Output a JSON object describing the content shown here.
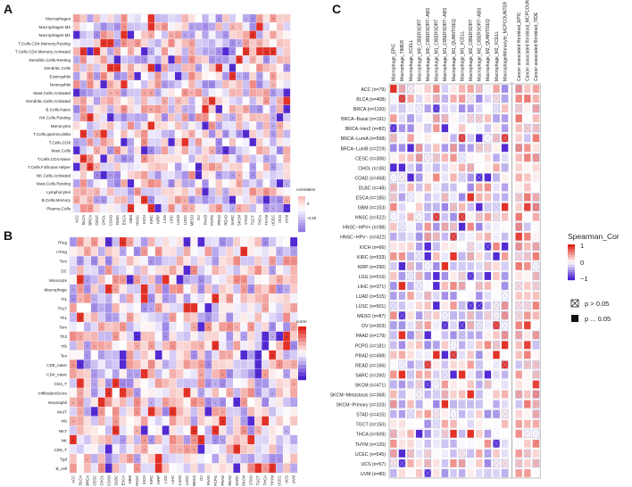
{
  "panel_letters": {
    "a": "A",
    "b": "B",
    "c": "C"
  },
  "scale": {
    "neg": "#4a1fd1",
    "mid": "#ffffff",
    "pos": "#e0261c"
  },
  "chart_data": [
    {
      "id": "A",
      "type": "heatmap",
      "title": "",
      "legend_title": "correlation",
      "legend_ticks": [
        "0",
        "-0.25"
      ],
      "legend_placement": "right",
      "rows": [
        "Macrophages",
        "Macrophages.M2",
        "Macrophages.M1",
        "T.Cells.CD4.Memory.Resting",
        "T.Cells.CD4.Memory.Activated",
        "Dendritic.Cells.Resting",
        "Dendritic.Cells",
        "Eosinophils",
        "Neutrophils",
        "Mast.Cells.Activated",
        "Dendritic.Cells.Activated",
        "B.Cells.Naive",
        "NK.Cells.Resting",
        "Monocytes",
        "T.Cells.gamma.delta",
        "T.Cells.CD8",
        "Mast.Cells",
        "T.Cells.CD4.Naive",
        "T.Cells.Follicular.Helper",
        "NK.Cells.Activated",
        "Mast.Cells.Resting",
        "Lymphocytes",
        "B.Cells.Memory",
        "Plasma.Cells"
      ],
      "columns": [
        "ACC",
        "BLCA",
        "BRCA",
        "CESC",
        "CHOL",
        "COAD",
        "DLBC",
        "ESCA",
        "GBM",
        "HNSC",
        "KICH",
        "KIRC",
        "KIRP",
        "LGG",
        "LIHC",
        "LUAD",
        "LUSC",
        "MESO",
        "OV",
        "PAAD",
        "PCPG",
        "PRAD",
        "READ",
        "SARC",
        "SKCM",
        "STAD",
        "TGCT",
        "THCA",
        "THYM",
        "UCEC",
        "UCS",
        "UVM"
      ]
    },
    {
      "id": "B",
      "type": "heatmap",
      "title": "",
      "legend_title": "correl",
      "legend_placement": "right",
      "rows": [
        "iTreg",
        "nTreg",
        "Tcm",
        "DC",
        "Monocyte",
        "Macrophage",
        "Tr1",
        "Th17",
        "Th1",
        "Tem",
        "Th2",
        "Tfh",
        "Tex",
        "CD8_naive",
        "CD4_naive",
        "CD4_T",
        "InfiltrationScore",
        "Neutrophil",
        "MAIT",
        "Tfh",
        "NKT",
        "NK",
        "CD8_T",
        "Tgd",
        "B_cell"
      ],
      "columns": [
        "ACC",
        "BLCA",
        "BRCA",
        "CESC",
        "CHOL",
        "COAD",
        "DLBC",
        "ESCA",
        "GBM",
        "HNSC",
        "KICH",
        "KIRC",
        "KIRP",
        "LGG",
        "LIHC",
        "LUAD",
        "LUSC",
        "MESO",
        "OV",
        "PAAD",
        "PCPG",
        "PRAD",
        "READ",
        "SARC",
        "SKCM",
        "STAD",
        "TGCT",
        "THCA",
        "THYM",
        "UCEC",
        "UCS",
        "UVM"
      ]
    },
    {
      "id": "C",
      "type": "heatmap",
      "title": "",
      "legend_title": "Spearman_Cor",
      "legend_ticks": [
        "1",
        "0",
        "−1"
      ],
      "legend_placement": "right",
      "significance_legend": [
        {
          "symbol": "crossed-box",
          "label": "p > 0.05"
        },
        {
          "symbol": "filled-box",
          "label": "p ... 0.05"
        }
      ],
      "columns": [
        "Macrophage_EPIC",
        "Macrophage_TIMER",
        "Macrophage_XCELL",
        "Macrophage_M0_CIBERSORT",
        "Macrophage_M0_CIBERSORT−ABS",
        "Macrophage_M1_CIBERSORT",
        "Macrophage_M1_CIBERSORT−ABS",
        "Macrophage_M1_QUANTISEQ",
        "Macrophage_M1_XCELL",
        "Macrophage_M2_CIBERSORT",
        "Macrophage_M2_CIBERSORT−ABS",
        "Macrophage_M2_QUANTISEQ",
        "Macrophage_M2_XCELL",
        "Macrophage/Monocyte_MCPCOUNTER",
        "Cancer associated fibroblast_EPIC",
        "Cancer associated fibroblast_MCPCOUNTER",
        "Cancer associated fibroblast_TIDE"
      ],
      "rows": [
        "ACC (n=79)",
        "BLCA (n=408)",
        "BRCA (n=1100)",
        "BRCA−Basal (n=191)",
        "BRCA−Her2 (n=82)",
        "BRCA−LumA (n=568)",
        "BRCA−LumB (n=219)",
        "CESC (n=306)",
        "CHOL (n=36)",
        "COAD (n=458)",
        "DLBC (n=48)",
        "ESCA (n=185)",
        "GBM (n=153)",
        "HNSC (n=522)",
        "HNSC−HPV+ (n=98)",
        "HNSC−HPV− (n=422)",
        "KICH (n=66)",
        "KIRC (n=533)",
        "KIRP (n=290)",
        "LGG (n=516)",
        "LIHC (n=371)",
        "LUAD (n=515)",
        "LUSC (n=501)",
        "MESO (n=87)",
        "OV (n=303)",
        "PAAD (n=179)",
        "PCPG (n=181)",
        "PRAD (n=498)",
        "READ (n=166)",
        "SARC (n=260)",
        "SKCM (n=471)",
        "SKCM−Metastasis (n=368)",
        "SKCM−Primary (n=103)",
        "STAD (n=415)",
        "TGCT (n=150)",
        "THCA (n=509)",
        "THYM (n=120)",
        "UCEC (n=545)",
        "UCS (n=57)",
        "UVM (n=80)"
      ]
    }
  ]
}
